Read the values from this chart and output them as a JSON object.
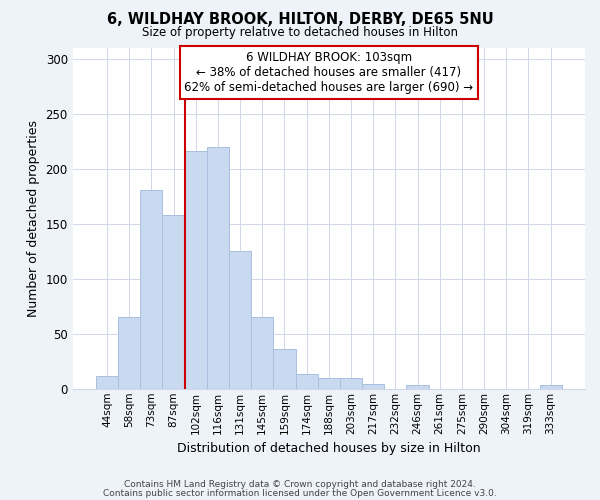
{
  "title": "6, WILDHAY BROOK, HILTON, DERBY, DE65 5NU",
  "subtitle": "Size of property relative to detached houses in Hilton",
  "xlabel": "Distribution of detached houses by size in Hilton",
  "ylabel": "Number of detached properties",
  "footer_lines": [
    "Contains HM Land Registry data © Crown copyright and database right 2024.",
    "Contains public sector information licensed under the Open Government Licence v3.0."
  ],
  "bin_labels": [
    "44sqm",
    "58sqm",
    "73sqm",
    "87sqm",
    "102sqm",
    "116sqm",
    "131sqm",
    "145sqm",
    "159sqm",
    "174sqm",
    "188sqm",
    "203sqm",
    "217sqm",
    "232sqm",
    "246sqm",
    "261sqm",
    "275sqm",
    "290sqm",
    "304sqm",
    "319sqm",
    "333sqm"
  ],
  "bar_heights": [
    12,
    65,
    181,
    158,
    216,
    220,
    125,
    65,
    36,
    13,
    10,
    10,
    4,
    0,
    3,
    0,
    0,
    0,
    0,
    0,
    3
  ],
  "bar_color": "#c8d9f0",
  "bar_edge_color": "#a8c0de",
  "vline_x_index": 4,
  "vline_color": "#cc0000",
  "annotation_lines": [
    "6 WILDHAY BROOK: 103sqm",
    "← 38% of detached houses are smaller (417)",
    "62% of semi-detached houses are larger (690) →"
  ],
  "ylim": [
    0,
    310
  ],
  "yticks": [
    0,
    50,
    100,
    150,
    200,
    250,
    300
  ],
  "background_color": "#eef2f9",
  "plot_background": "#ffffff"
}
